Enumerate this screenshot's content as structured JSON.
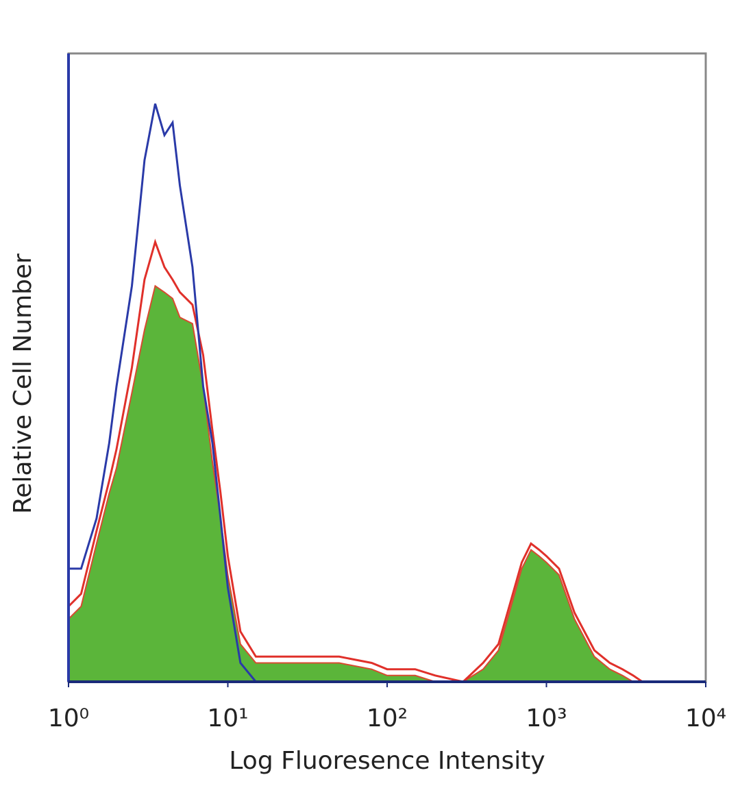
{
  "chart_data": {
    "type": "line",
    "xscale": "log",
    "xlabel": "Log Fluoresence Intensity",
    "ylabel": "Relative Cell Number",
    "xlim": [
      1,
      10000
    ],
    "ylim": [
      0,
      100
    ],
    "xticks": [
      {
        "value": 1,
        "label": "10⁰"
      },
      {
        "value": 10,
        "label": "10¹"
      },
      {
        "value": 100,
        "label": "10²"
      },
      {
        "value": 1000,
        "label": "10³"
      },
      {
        "value": 10000,
        "label": "10⁴"
      }
    ],
    "x": [
      1,
      1.2,
      1.5,
      1.8,
      2,
      2.5,
      3,
      3.5,
      4,
      4.5,
      5,
      6,
      7,
      8,
      9,
      10,
      12,
      15,
      20,
      30,
      50,
      80,
      100,
      150,
      200,
      300,
      400,
      500,
      600,
      700,
      800,
      900,
      1000,
      1200,
      1500,
      2000,
      2500,
      3000,
      3500,
      4000,
      10000
    ],
    "series": [
      {
        "color": "#5bb53a",
        "fill": true,
        "values": [
          10,
          12,
          22,
          30,
          34,
          46,
          56,
          63,
          62,
          61,
          58,
          57,
          47,
          35,
          26,
          17,
          6,
          3,
          3,
          3,
          3,
          2,
          1,
          1,
          0,
          0,
          2,
          5,
          12,
          18,
          21,
          20,
          19,
          17,
          10,
          4,
          2,
          1,
          0,
          0,
          0
        ]
      },
      {
        "color": "#e0302a",
        "fill": false,
        "values": [
          12,
          14,
          24,
          32,
          37,
          50,
          64,
          70,
          66,
          64,
          62,
          60,
          52,
          40,
          30,
          20,
          8,
          4,
          4,
          4,
          4,
          3,
          2,
          2,
          1,
          0,
          3,
          6,
          13,
          19,
          22,
          21,
          20,
          18,
          11,
          5,
          3,
          2,
          1,
          0,
          0
        ]
      },
      {
        "color": "#2a3aa8",
        "fill": false,
        "values": [
          18,
          18,
          26,
          38,
          47,
          63,
          83,
          92,
          87,
          89,
          79,
          66,
          47,
          38,
          26,
          15,
          3,
          0,
          0,
          0,
          0,
          0,
          0,
          0,
          0,
          0,
          0,
          0,
          0,
          0,
          0,
          0,
          0,
          0,
          0,
          0,
          0,
          0,
          0,
          0,
          0
        ]
      }
    ]
  }
}
